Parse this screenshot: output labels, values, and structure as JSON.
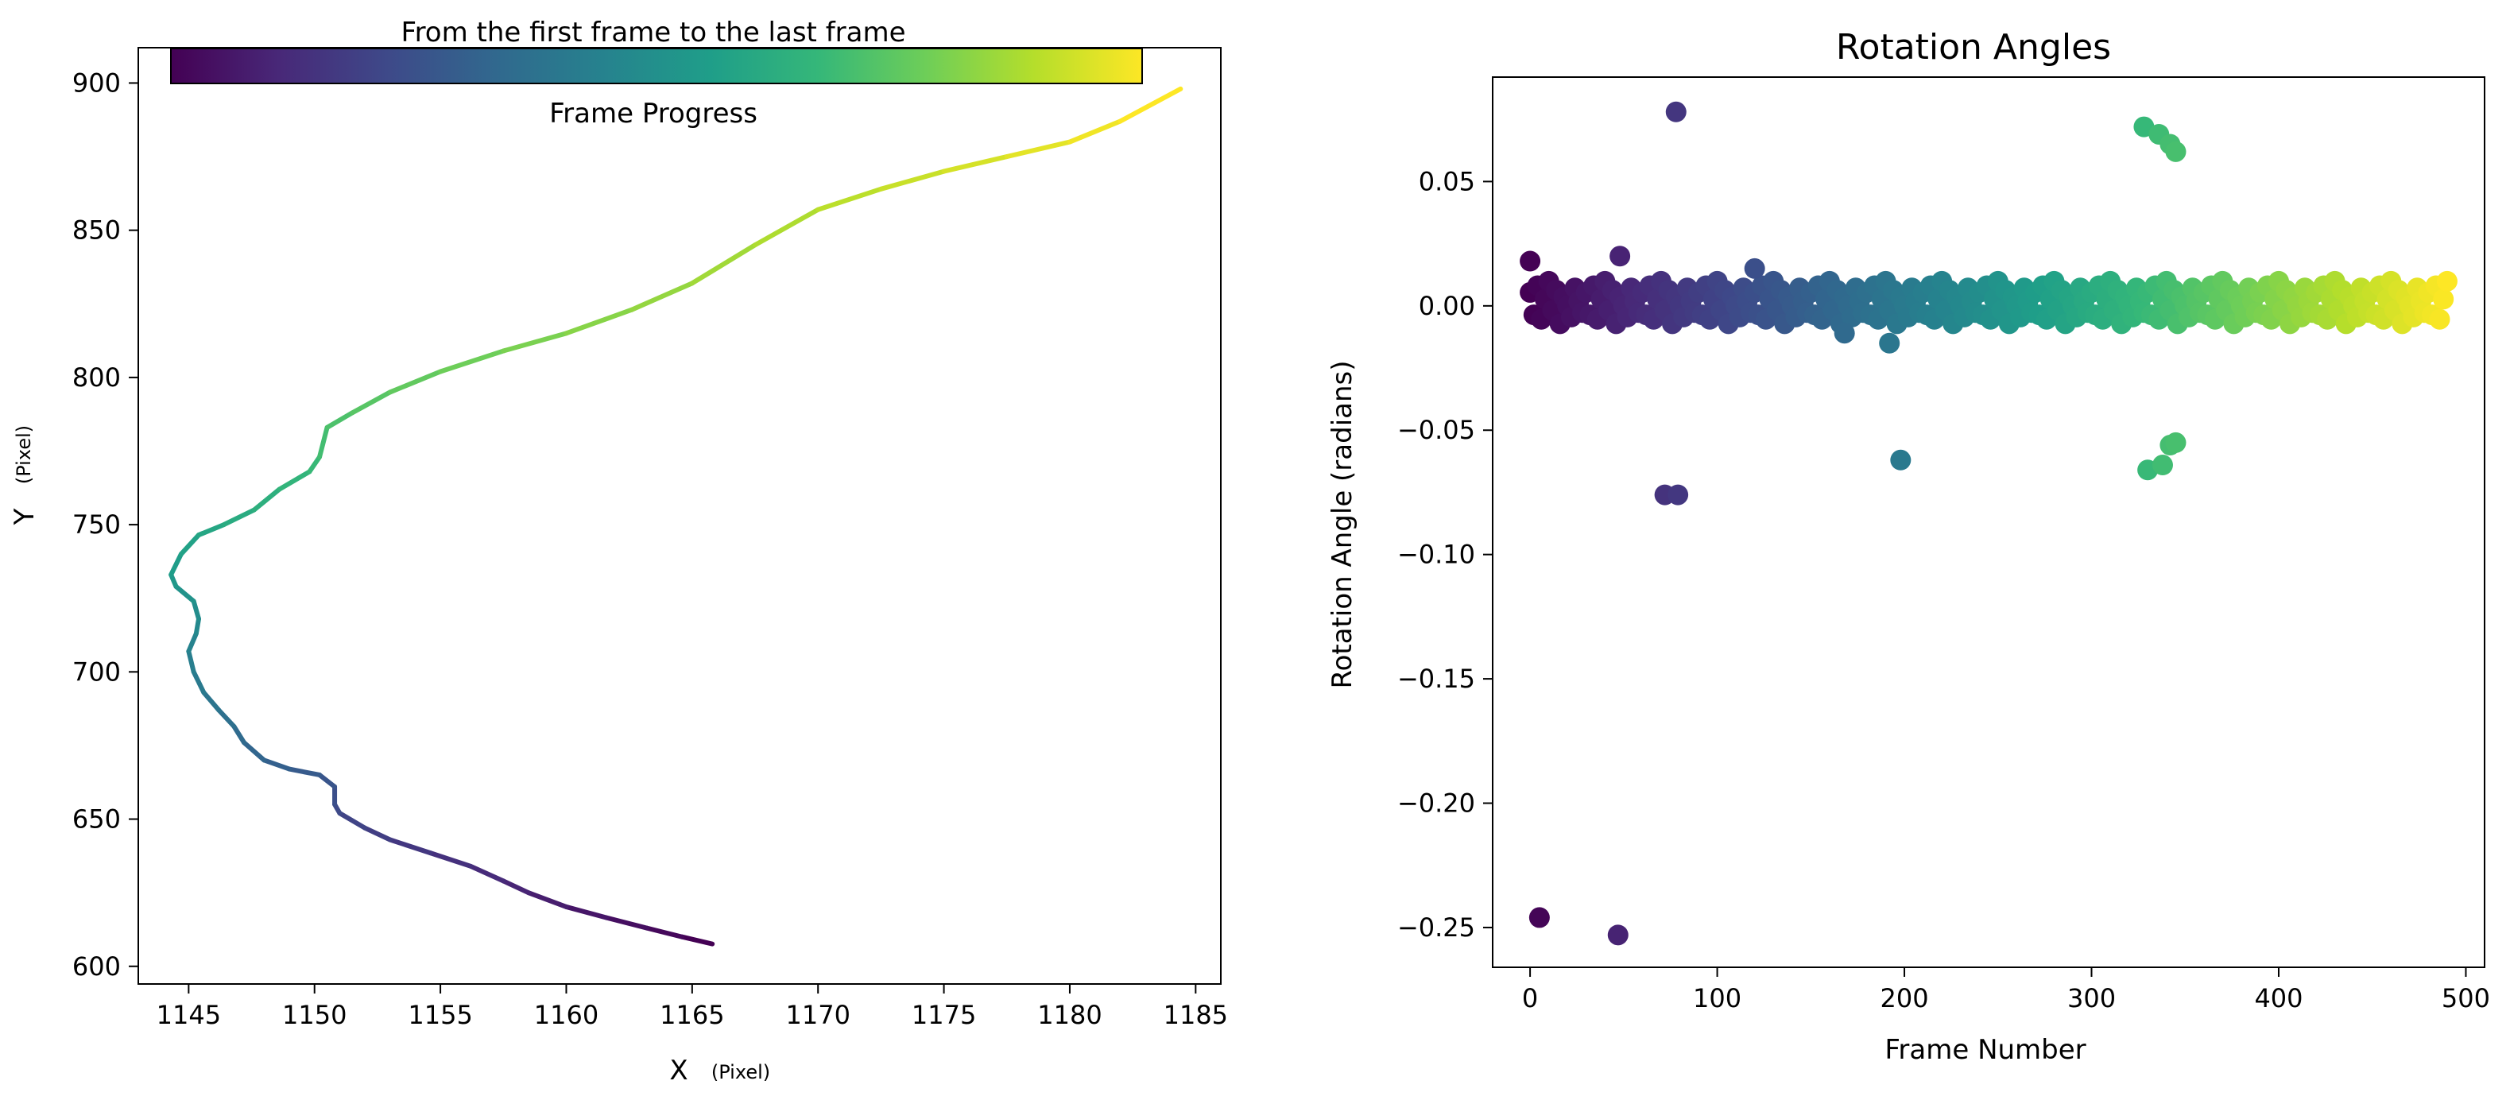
{
  "chart_data": [
    {
      "type": "line",
      "xlabel": "X",
      "xlabel_unit": "(Pixel)",
      "ylabel": "Y",
      "ylabel_unit": "(Pixel)",
      "xlim": [
        1143,
        1186
      ],
      "ylim": [
        594,
        912
      ],
      "xticks": [
        1145,
        1150,
        1155,
        1160,
        1165,
        1170,
        1175,
        1180,
        1185
      ],
      "yticks": [
        600,
        650,
        700,
        750,
        800,
        850,
        900
      ],
      "grid": false,
      "colormap": "viridis",
      "colorbar": {
        "title": "From the first frame to the last frame",
        "label": "Frame Progress",
        "placement": "top",
        "colors": [
          "#440154",
          "#482878",
          "#3e4989",
          "#31688e",
          "#26828e",
          "#1f9e89",
          "#35b779",
          "#6ece58",
          "#b5de2b",
          "#fde725"
        ]
      },
      "points": [
        [
          1165.8,
          607.6
        ],
        [
          1164.6,
          610.0
        ],
        [
          1163.2,
          613.0
        ],
        [
          1161.6,
          616.5
        ],
        [
          1160.0,
          620.2
        ],
        [
          1158.5,
          625.0
        ],
        [
          1157.5,
          629.0
        ],
        [
          1156.2,
          634.0
        ],
        [
          1154.6,
          638.5
        ],
        [
          1153.0,
          643.0
        ],
        [
          1152.0,
          647.0
        ],
        [
          1151.0,
          652.0
        ],
        [
          1150.8,
          655.0
        ],
        [
          1150.8,
          661.0
        ],
        [
          1150.2,
          665.0
        ],
        [
          1149.0,
          667.0
        ],
        [
          1148.0,
          670.0
        ],
        [
          1147.2,
          676.0
        ],
        [
          1146.8,
          681.5
        ],
        [
          1146.2,
          687.0
        ],
        [
          1145.6,
          693.0
        ],
        [
          1145.2,
          700.0
        ],
        [
          1145.0,
          707.0
        ],
        [
          1145.3,
          713.0
        ],
        [
          1145.4,
          718.0
        ],
        [
          1145.2,
          724.0
        ],
        [
          1144.5,
          729.0
        ],
        [
          1144.3,
          733.0
        ],
        [
          1144.7,
          740.0
        ],
        [
          1145.4,
          746.5
        ],
        [
          1146.4,
          750.0
        ],
        [
          1147.6,
          755.0
        ],
        [
          1148.6,
          762.0
        ],
        [
          1149.8,
          768.0
        ],
        [
          1150.2,
          773.0
        ],
        [
          1150.5,
          783.0
        ],
        [
          1151.5,
          788.0
        ],
        [
          1153.0,
          795.0
        ],
        [
          1155.0,
          802.0
        ],
        [
          1157.5,
          809.0
        ],
        [
          1160.0,
          815.0
        ],
        [
          1162.6,
          823.0
        ],
        [
          1165.0,
          832.0
        ],
        [
          1167.5,
          845.0
        ],
        [
          1170.0,
          857.0
        ],
        [
          1172.5,
          864.0
        ],
        [
          1175.0,
          870.0
        ],
        [
          1177.5,
          875.0
        ],
        [
          1180.0,
          880.0
        ],
        [
          1182.0,
          887.0
        ],
        [
          1184.4,
          898.0
        ]
      ]
    },
    {
      "type": "scatter",
      "title": "Rotation Angles",
      "xlabel": "Frame Number",
      "ylabel": "Rotation Angle (radians)",
      "xlim": [
        -20,
        510
      ],
      "ylim": [
        -0.266,
        0.092
      ],
      "xticks": [
        0,
        100,
        200,
        300,
        400,
        500
      ],
      "yticks": [
        0.05,
        0.0,
        -0.05,
        -0.1,
        -0.15,
        -0.2,
        -0.25
      ],
      "ytick_labels": [
        "0.05",
        "0.00",
        "−0.05",
        "−0.10",
        "−0.15",
        "−0.20",
        "−0.25"
      ],
      "grid": false,
      "colormap": "viridis",
      "colors": [
        "#440154",
        "#482878",
        "#3e4989",
        "#31688e",
        "#26828e",
        "#1f9e89",
        "#35b779",
        "#6ece58",
        "#b5de2b",
        "#fde725"
      ],
      "frame_max": 490,
      "baseline": {
        "frames": 490,
        "values": [
          0.006,
          -0.004,
          0.009,
          -0.006,
          0.003,
          0.011,
          -0.002,
          0.007,
          -0.008,
          0.004,
          0.0,
          -0.005,
          0.008,
          0.002,
          -0.003
        ]
      },
      "outliers": [
        {
          "frame": 0,
          "value": 0.018
        },
        {
          "frame": 5,
          "value": -0.246
        },
        {
          "frame": 47,
          "value": -0.253
        },
        {
          "frame": 48,
          "value": 0.02
        },
        {
          "frame": 72,
          "value": -0.076
        },
        {
          "frame": 79,
          "value": -0.076
        },
        {
          "frame": 78,
          "value": 0.078
        },
        {
          "frame": 120,
          "value": 0.015
        },
        {
          "frame": 168,
          "value": -0.011
        },
        {
          "frame": 192,
          "value": -0.015
        },
        {
          "frame": 198,
          "value": -0.062
        },
        {
          "frame": 328,
          "value": 0.072
        },
        {
          "frame": 336,
          "value": 0.069
        },
        {
          "frame": 342,
          "value": 0.065
        },
        {
          "frame": 345,
          "value": 0.062
        },
        {
          "frame": 330,
          "value": -0.066
        },
        {
          "frame": 338,
          "value": -0.064
        },
        {
          "frame": 342,
          "value": -0.056
        },
        {
          "frame": 345,
          "value": -0.055
        }
      ]
    }
  ]
}
